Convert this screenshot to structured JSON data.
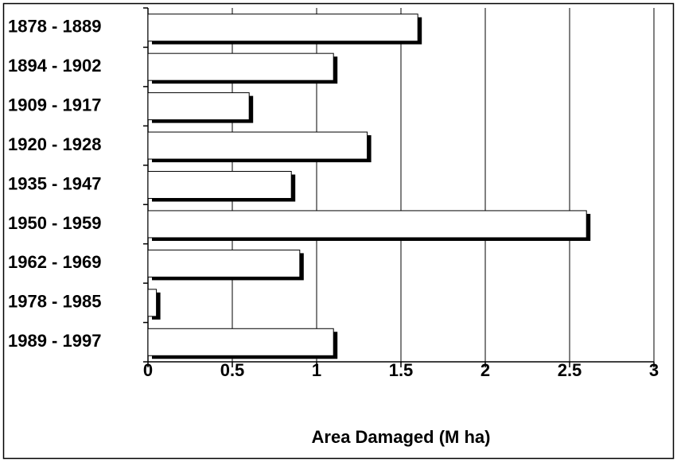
{
  "chart_data": {
    "type": "bar",
    "orientation": "horizontal",
    "x_label": "Area Damaged (M ha)",
    "categories": [
      "1878 - 1889",
      "1894 - 1902",
      "1909 - 1917",
      "1920 - 1928",
      "1935 - 1947",
      "1950 - 1959",
      "1962 - 1969",
      "1978 - 1985",
      "1989 - 1997"
    ],
    "values": [
      1.6,
      1.1,
      0.6,
      1.3,
      0.85,
      2.6,
      0.9,
      0.05,
      1.1
    ],
    "color": "#ffffff",
    "xlim": [
      0,
      3
    ],
    "xticks": [
      0,
      0.5,
      1,
      1.5,
      2,
      2.5,
      3
    ],
    "grid": true
  }
}
